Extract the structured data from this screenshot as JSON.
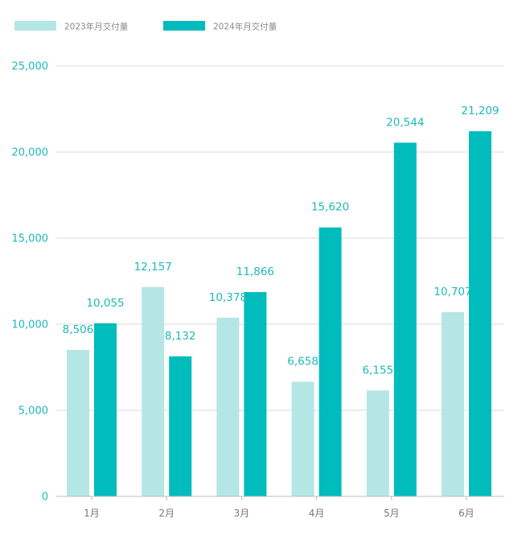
{
  "chart_data": {
    "type": "bar",
    "title": "",
    "xlabel": "",
    "ylabel": "",
    "categories": [
      "1月",
      "2月",
      "3月",
      "4月",
      "5月",
      "6月"
    ],
    "series": [
      {
        "name": "2023年月交付量",
        "color": "#b4e6e6",
        "values": [
          8506,
          12157,
          10378,
          6658,
          6155,
          10707
        ]
      },
      {
        "name": "2024年月交付量",
        "color": "#00bcbc",
        "values": [
          10055,
          8132,
          11866,
          15620,
          20544,
          21209
        ]
      }
    ],
    "data_labels": [
      [
        "8,506",
        "12,157",
        "10,378",
        "6,658",
        "6,155",
        "10,707"
      ],
      [
        "10,055",
        "8,132",
        "11,866",
        "15,620",
        "20,544",
        "21,209"
      ]
    ],
    "ylim": [
      0,
      25000
    ],
    "yticks": [
      0,
      5000,
      10000,
      15000,
      20000,
      25000
    ],
    "ytick_labels": [
      "0",
      "5,000",
      "10,000",
      "15,000",
      "20,000",
      "25,000"
    ],
    "grid": true,
    "legend_position": "top-left"
  }
}
